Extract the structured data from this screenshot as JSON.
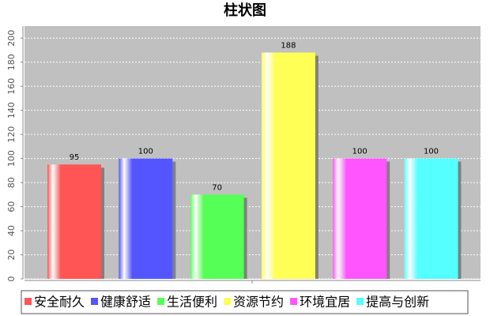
{
  "chart_data": {
    "type": "bar",
    "title": "柱状图",
    "series": [
      {
        "name": "安全耐久",
        "color": "#ff5555",
        "values": [
          95
        ]
      },
      {
        "name": "健康舒适",
        "color": "#5555ff",
        "values": [
          100
        ]
      },
      {
        "name": "生活便利",
        "color": "#55ff55",
        "values": [
          70
        ]
      },
      {
        "name": "资源节约",
        "color": "#ffff55",
        "values": [
          188
        ]
      },
      {
        "name": "环境宜居",
        "color": "#ff55ff",
        "values": [
          100
        ]
      },
      {
        "name": "提高与创新",
        "color": "#55ffff",
        "values": [
          100
        ]
      }
    ],
    "ylim": [
      0,
      210
    ],
    "yticks": [
      0,
      20,
      40,
      60,
      80,
      100,
      120,
      140,
      160,
      180,
      200
    ],
    "grid": true
  }
}
